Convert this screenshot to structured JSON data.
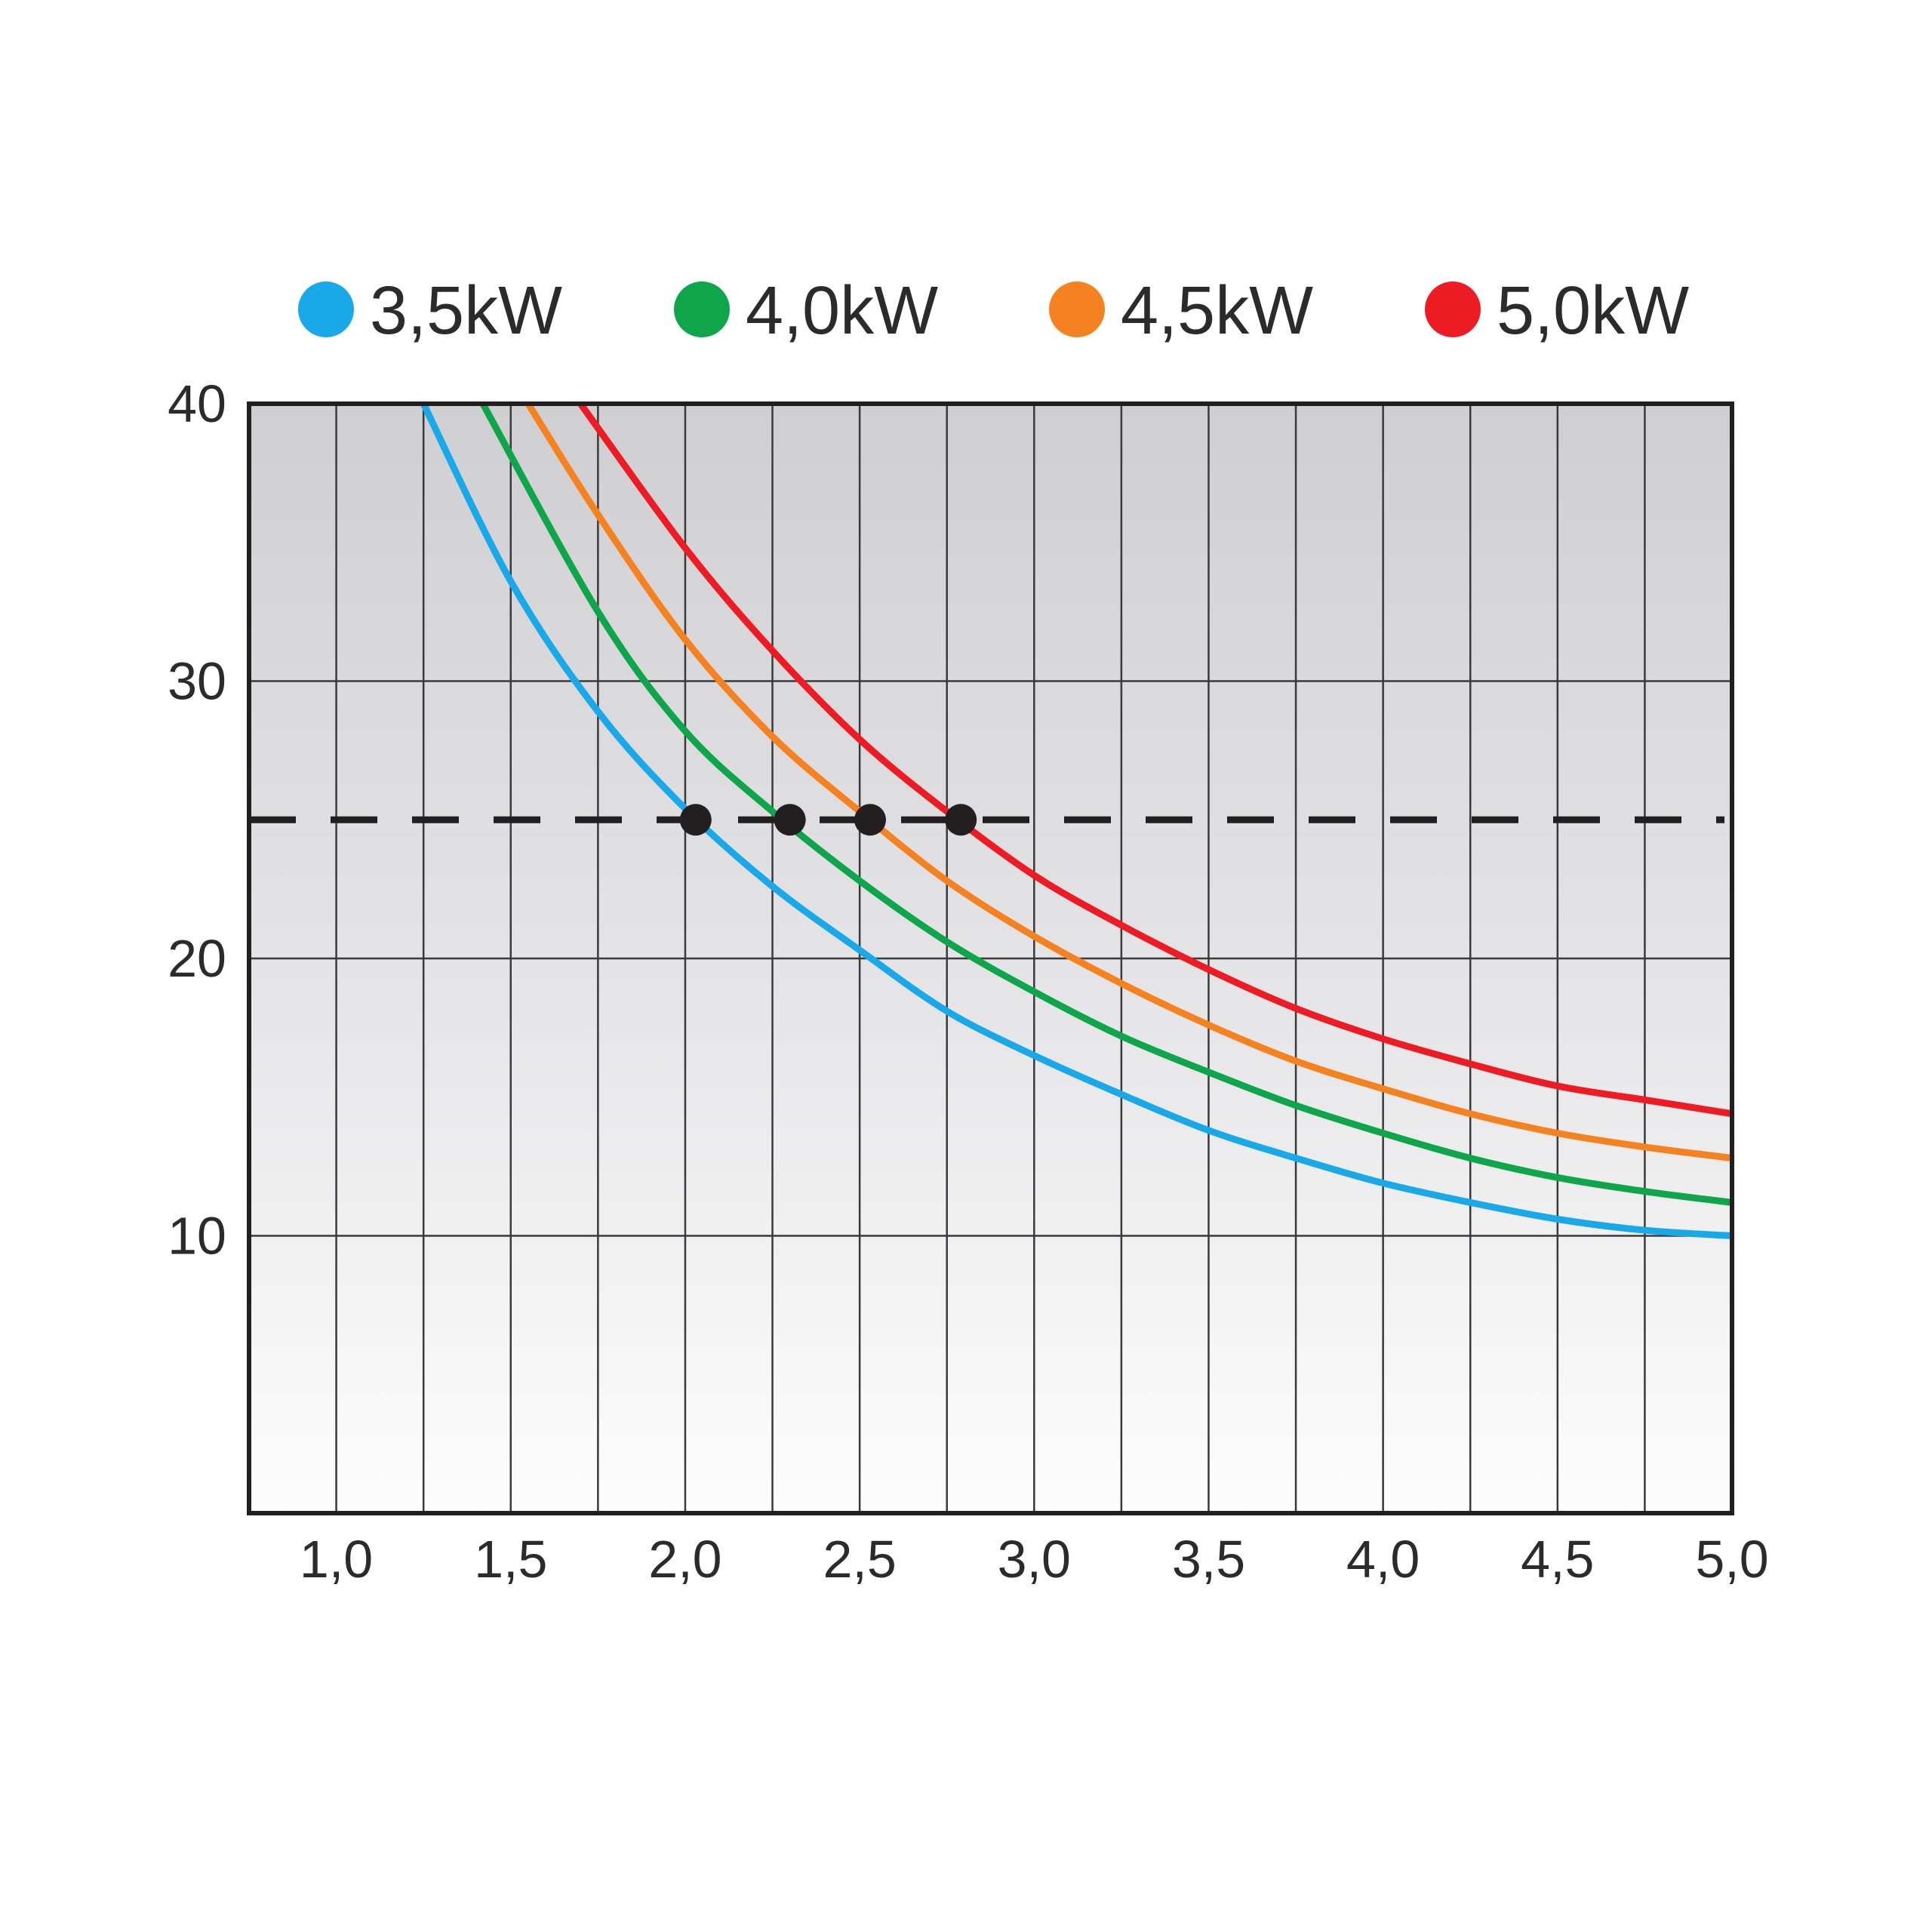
{
  "chart_data": {
    "type": "line",
    "title": "",
    "xlabel": "",
    "ylabel": "",
    "xlim": [
      0.75,
      5.0
    ],
    "ylim": [
      0,
      40
    ],
    "grid": true,
    "legend_position": "top",
    "x_ticks": [
      1.0,
      1.5,
      2.0,
      2.5,
      3.0,
      3.5,
      4.0,
      4.5,
      5.0
    ],
    "x_tick_labels": [
      "1,0",
      "1,5",
      "2,0",
      "2,5",
      "3,0",
      "3,5",
      "4,0",
      "4,5",
      "5,0"
    ],
    "y_ticks": [
      10,
      20,
      30,
      40
    ],
    "y_tick_labels": [
      "10",
      "20",
      "30",
      "40"
    ],
    "reference_line": {
      "y": 25,
      "style": "dashed",
      "color": "#231f20"
    },
    "series": [
      {
        "name": "3,5kW",
        "color": "#1aa9e8",
        "x": [
          1.25,
          1.5,
          1.75,
          2.0,
          2.25,
          2.5,
          2.75,
          3.0,
          3.25,
          3.5,
          3.75,
          4.0,
          4.25,
          4.5,
          4.75,
          5.0
        ],
        "y": [
          40.0,
          33.6,
          28.9,
          25.4,
          22.6,
          20.3,
          18.1,
          16.5,
          15.1,
          13.8,
          12.8,
          11.9,
          11.2,
          10.6,
          10.2,
          10.0
        ],
        "marker": {
          "x": 2.03,
          "y": 25
        }
      },
      {
        "name": "4,0kW",
        "color": "#0ea54b",
        "x": [
          1.42,
          1.75,
          2.0,
          2.25,
          2.5,
          2.75,
          3.0,
          3.25,
          3.5,
          3.75,
          4.0,
          4.25,
          4.5,
          4.75,
          5.0
        ],
        "y": [
          40.0,
          32.5,
          28.2,
          25.3,
          22.8,
          20.6,
          18.8,
          17.2,
          15.9,
          14.7,
          13.7,
          12.8,
          12.1,
          11.6,
          11.2
        ],
        "marker": {
          "x": 2.3,
          "y": 25
        }
      },
      {
        "name": "4,5kW",
        "color": "#f58220",
        "x": [
          1.55,
          1.75,
          2.0,
          2.25,
          2.5,
          2.75,
          3.0,
          3.25,
          3.5,
          3.75,
          4.0,
          4.25,
          4.5,
          4.75,
          5.0
        ],
        "y": [
          40.0,
          36.0,
          31.5,
          28.0,
          25.3,
          22.8,
          20.8,
          19.1,
          17.6,
          16.3,
          15.3,
          14.4,
          13.7,
          13.2,
          12.8
        ],
        "marker": {
          "x": 2.53,
          "y": 25
        }
      },
      {
        "name": "5,0kW",
        "color": "#ed1c24",
        "x": [
          1.7,
          2.0,
          2.25,
          2.5,
          2.75,
          3.0,
          3.25,
          3.5,
          3.75,
          4.0,
          4.25,
          4.5,
          4.75,
          5.0
        ],
        "y": [
          40.0,
          34.8,
          31.1,
          27.9,
          25.3,
          23.0,
          21.2,
          19.6,
          18.2,
          17.1,
          16.2,
          15.4,
          14.9,
          14.4
        ],
        "marker": {
          "x": 2.79,
          "y": 25
        }
      }
    ]
  }
}
